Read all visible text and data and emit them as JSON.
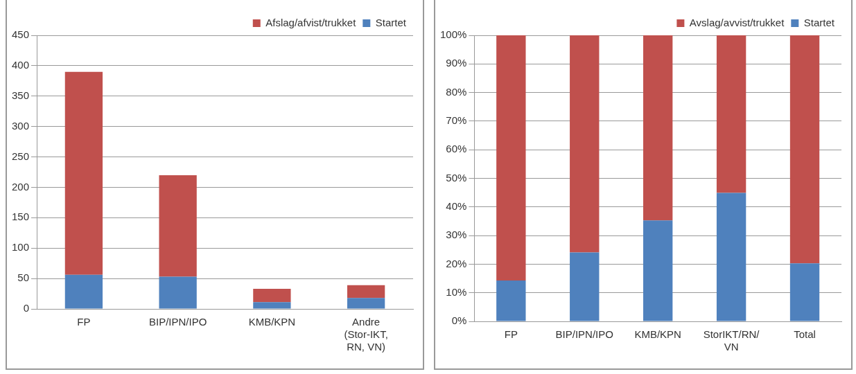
{
  "chart_data": [
    {
      "type": "bar",
      "stacked": true,
      "categories": [
        "FP",
        "BIP/IPN/IPO",
        "KMB/KPN",
        "Andre (Stor-IKT, RN, VN)"
      ],
      "series": [
        {
          "name": "Startet",
          "color": "#4f81bd",
          "values": [
            56,
            53,
            11,
            18
          ]
        },
        {
          "name": "Afslag/afvist/trukket",
          "color": "#c0504d",
          "values": [
            334,
            167,
            22,
            21
          ]
        }
      ],
      "ylim": [
        0,
        450
      ],
      "yticks": [
        0,
        50,
        100,
        150,
        200,
        250,
        300,
        350,
        400,
        450
      ],
      "grid": "y",
      "legend": "top right"
    },
    {
      "type": "bar",
      "stacked": true,
      "categories": [
        "FP",
        "BIP/IPN/IPO",
        "KMB/KPN",
        "StorIKT/RN/VN",
        "Total"
      ],
      "series": [
        {
          "name": "Startet",
          "color": "#4f81bd",
          "values": [
            14.3,
            24.1,
            35.3,
            44.9,
            20.3
          ]
        },
        {
          "name": "Avslag/avvist/trukket",
          "color": "#c0504d",
          "values": [
            85.7,
            75.9,
            64.7,
            55.1,
            79.7
          ]
        }
      ],
      "ylim": [
        0,
        100
      ],
      "yticks": [
        {
          "value": 0,
          "label": "0%"
        },
        {
          "value": 10,
          "label": "10%"
        },
        {
          "value": 20,
          "label": "20%"
        },
        {
          "value": 30,
          "label": "30%"
        },
        {
          "value": 40,
          "label": "40%"
        },
        {
          "value": 50,
          "label": "50%"
        },
        {
          "value": 60,
          "label": "60%"
        },
        {
          "value": 70,
          "label": "70%"
        },
        {
          "value": 80,
          "label": "80%"
        },
        {
          "value": 90,
          "label": "90%"
        },
        {
          "value": 100,
          "label": "100%"
        }
      ],
      "grid": "y",
      "legend": "top right"
    }
  ]
}
